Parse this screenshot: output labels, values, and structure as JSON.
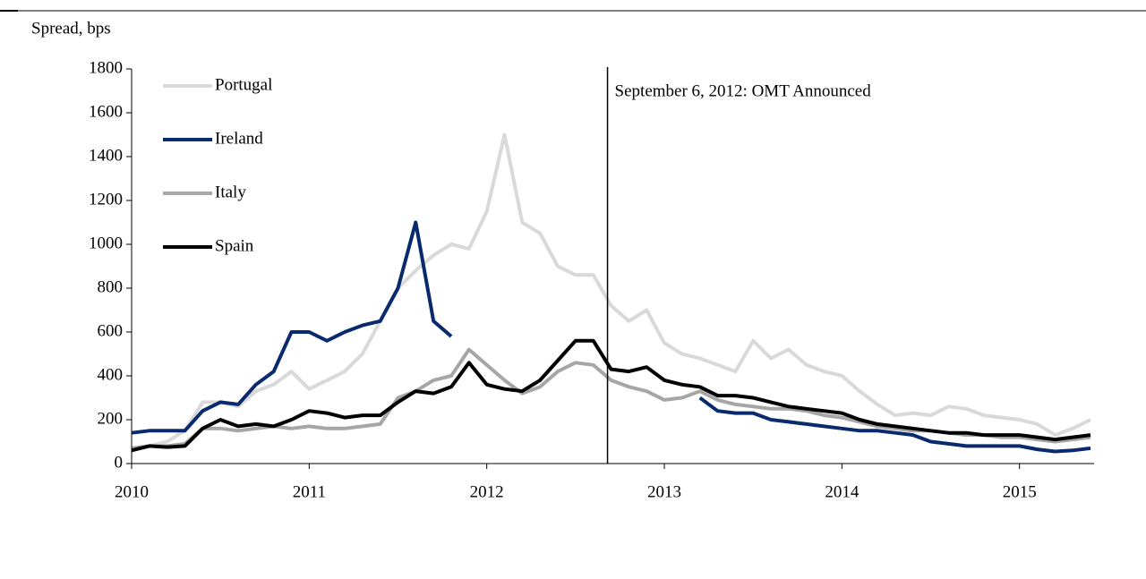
{
  "chart_data": {
    "type": "line",
    "y_label": "Spread, bps",
    "x": [
      2010.0,
      2010.1,
      2010.2,
      2010.3,
      2010.4,
      2010.5,
      2010.6,
      2010.7,
      2010.8,
      2010.9,
      2011.0,
      2011.1,
      2011.2,
      2011.3,
      2011.4,
      2011.5,
      2011.6,
      2011.7,
      2011.8,
      2011.9,
      2012.0,
      2012.1,
      2012.2,
      2012.3,
      2012.4,
      2012.5,
      2012.6,
      2012.7,
      2012.8,
      2012.9,
      2013.0,
      2013.1,
      2013.2,
      2013.3,
      2013.4,
      2013.5,
      2013.6,
      2013.7,
      2013.8,
      2013.9,
      2014.0,
      2014.1,
      2014.2,
      2014.3,
      2014.4,
      2014.5,
      2014.6,
      2014.7,
      2014.8,
      2014.9,
      2015.0,
      2015.1,
      2015.2,
      2015.3,
      2015.4
    ],
    "series": [
      {
        "name": "Portugal",
        "color": "#d9d9d9",
        "values": [
          70,
          80,
          100,
          150,
          280,
          280,
          260,
          330,
          360,
          420,
          340,
          380,
          420,
          500,
          650,
          800,
          880,
          950,
          1000,
          980,
          1150,
          1500,
          1100,
          1050,
          900,
          860,
          860,
          720,
          650,
          700,
          550,
          500,
          480,
          450,
          420,
          560,
          480,
          520,
          450,
          420,
          400,
          330,
          270,
          220,
          230,
          220,
          260,
          250,
          220,
          210,
          200,
          180,
          130,
          160,
          200
        ]
      },
      {
        "name": "Ireland",
        "color": "#0a2a6e",
        "values": [
          140,
          150,
          150,
          150,
          240,
          280,
          270,
          360,
          420,
          600,
          600,
          560,
          600,
          630,
          650,
          800,
          1100,
          650,
          580,
          null,
          null,
          null,
          null,
          null,
          null,
          null,
          null,
          null,
          null,
          null,
          null,
          null,
          300,
          240,
          230,
          230,
          200,
          190,
          180,
          170,
          160,
          150,
          150,
          140,
          130,
          100,
          90,
          80,
          80,
          80,
          80,
          65,
          55,
          60,
          70
        ]
      },
      {
        "name": "Italy",
        "color": "#a6a6a6",
        "values": [
          70,
          80,
          80,
          90,
          160,
          160,
          150,
          160,
          170,
          160,
          170,
          160,
          160,
          170,
          180,
          300,
          330,
          380,
          400,
          520,
          450,
          380,
          320,
          350,
          420,
          460,
          450,
          380,
          350,
          330,
          290,
          300,
          330,
          290,
          270,
          260,
          250,
          250,
          240,
          220,
          210,
          190,
          170,
          160,
          150,
          150,
          140,
          130,
          130,
          120,
          120,
          110,
          100,
          110,
          120
        ]
      },
      {
        "name": "Spain",
        "color": "#000000",
        "values": [
          60,
          80,
          75,
          80,
          160,
          200,
          170,
          180,
          170,
          200,
          240,
          230,
          210,
          220,
          220,
          280,
          330,
          320,
          350,
          460,
          360,
          340,
          330,
          380,
          470,
          560,
          560,
          430,
          420,
          440,
          380,
          360,
          350,
          310,
          310,
          300,
          280,
          260,
          250,
          240,
          230,
          200,
          180,
          170,
          160,
          150,
          140,
          140,
          130,
          130,
          130,
          120,
          110,
          120,
          130
        ]
      }
    ],
    "annotation": {
      "text": "September 6, 2012: OMT Announced",
      "x": 2012.68
    },
    "xlim": [
      2010,
      2015.42
    ],
    "xticks": [
      2010,
      2011,
      2012,
      2013,
      2014,
      2015
    ],
    "ylim": [
      0,
      1800
    ],
    "yticks": [
      0,
      200,
      400,
      600,
      800,
      1000,
      1200,
      1400,
      1600,
      1800
    ]
  }
}
